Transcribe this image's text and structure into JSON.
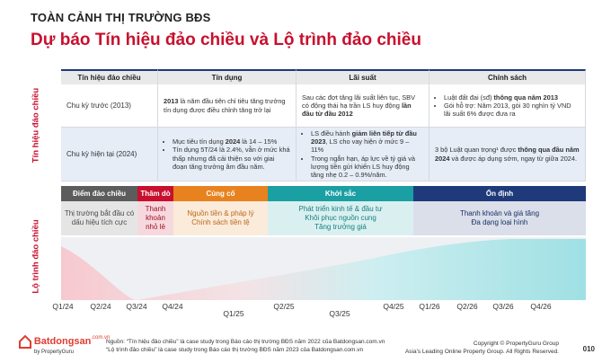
{
  "header": {
    "kicker": "TOÀN CẢNH THỊ TRƯỜNG BĐS",
    "title": "Dự báo Tín hiệu đảo chiều và Lộ trình đảo chiều"
  },
  "side_labels": [
    "Tín hiệu đảo chiều",
    "Lộ trình đảo chiều"
  ],
  "table": {
    "columns": [
      "Tín hiệu đảo chiều",
      "Tín dụng",
      "Lãi suất",
      "Chính sách"
    ],
    "rows": [
      {
        "label": "Chu kỳ trước (2013)",
        "cells": [
          {
            "bullets": false,
            "paragraphs": [
              [
                {
                  "text": "2013",
                  "bold": true
                },
                " là năm đầu tiên chỉ tiêu tăng trưởng tín dụng được điều chỉnh tăng trở lại"
              ]
            ]
          },
          {
            "bullets": false,
            "paragraphs": [
              [
                "Sau các đợt tăng lãi suất liên tục, SBV có động thái hạ trần LS huy động ",
                {
                  "text": "lần đầu từ đầu 2012",
                  "bold": true
                }
              ]
            ]
          },
          {
            "bullets": true,
            "paragraphs": [
              [
                "Luật đất đai (sđ) ",
                {
                  "text": "thông qua năm 2013",
                  "bold": true
                }
              ],
              [
                "Gói hỗ trợ: Năm 2013, gói 30 nghìn tỷ VND lãi suất 6% được đưa ra"
              ]
            ]
          }
        ]
      },
      {
        "label": "Chu kỳ hiện tại (2024)",
        "cells": [
          {
            "bullets": true,
            "paragraphs": [
              [
                "Mục tiêu tín dụng ",
                {
                  "text": "2024",
                  "bold": true
                },
                " là 14 – 15%"
              ],
              [
                "Tín dụng 5T/24 là 2.4%, vẫn ở mức khá thấp nhưng đã cải thiện so với giai đoạn tăng trưởng âm đầu năm."
              ]
            ]
          },
          {
            "bullets": true,
            "paragraphs": [
              [
                "LS điều hành ",
                {
                  "text": "giảm liên tiếp từ đầu 2023",
                  "bold": true
                },
                ", LS cho vay hiện ở mức 9 – 11%"
              ],
              [
                "Trong ngắn hạn, áp lực về tỷ giá và lượng tiền gửi khiến LS huy động tăng nhẹ 0.2 – 0.9%/năm."
              ]
            ]
          },
          {
            "bullets": false,
            "paragraphs": [
              [
                "3 bộ Luật quan trọng¹ được ",
                {
                  "text": "thông qua đầu năm 2024",
                  "bold": true
                },
                " và được áp dụng sớm, ngay từ giữa 2024."
              ]
            ]
          }
        ]
      }
    ]
  },
  "phases": [
    {
      "name": "Điểm đảo chiều",
      "color": "#5c5c5c",
      "lines": [
        "Thị trường bắt đầu có dấu hiệu tích cực"
      ]
    },
    {
      "name": "Thăm dò",
      "color": "#c8102e",
      "lines": [
        "Thanh khoản nhỏ lẻ"
      ]
    },
    {
      "name": "Củng cố",
      "color": "#e8821e",
      "lines": [
        "Nguồn tiền & pháp lý",
        "Chính sách tiền tệ"
      ]
    },
    {
      "name": "Khởi sắc",
      "color": "#1a9fa3",
      "lines": [
        "Phát triển kinh tế & đầu tư",
        "Khôi phục nguồn cung",
        "Tăng trưởng giá"
      ]
    },
    {
      "name": "Ổn định",
      "color": "#1f3a7a",
      "lines": [
        "Thanh khoản và giá tăng",
        "Đa dạng loại hình"
      ]
    }
  ],
  "timeline": {
    "labels": [
      "Q1/24",
      "Q2/24",
      "Q3/24",
      "Q4/24",
      "Q1/25",
      "Q2/25",
      "Q3/25",
      "Q4/25",
      "Q1/26",
      "Q2/26",
      "Q3/26",
      "Q4/26"
    ]
  },
  "footer": {
    "brand": "Batdongsan",
    "brand_domain": ".com.vn",
    "brand_by": "by PropertyGuru",
    "sources": [
      "Nguồn: “Tín hiệu đảo chiều” là case study trong Báo cáo thị trường BĐS năm 2022 của Batdongsan.com.vn",
      "“Lộ trình đảo chiều” là case study trong Báo cáo thị trường BĐS năm 2023 của Batdongsan.com.vn"
    ],
    "copyright": "Copyright © PropertyGuru Group",
    "tagline": "Asia's Leading Online Property Group. All Rights Reserved.",
    "page": "010"
  }
}
